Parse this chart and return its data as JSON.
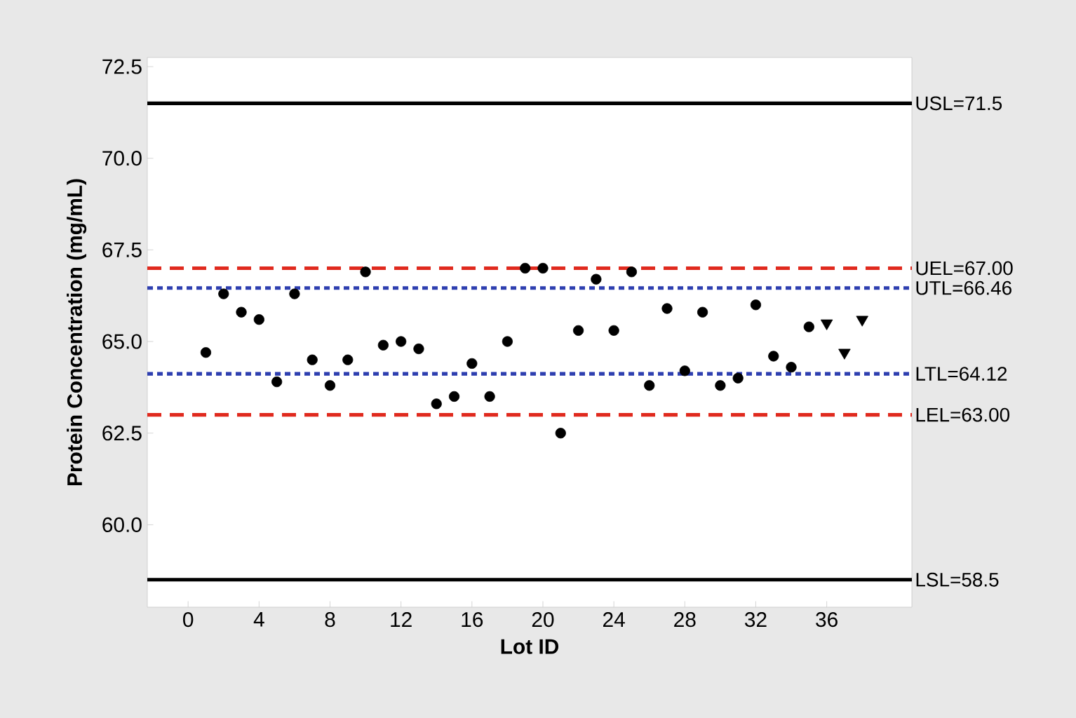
{
  "chart_data": {
    "type": "scatter",
    "xlabel": "Lot ID",
    "ylabel": "Protein Concentration (mg/mL)",
    "xlim": [
      -2.3,
      40.8
    ],
    "ylim": [
      57.75,
      72.75
    ],
    "xticks": [
      0,
      4,
      8,
      12,
      16,
      20,
      24,
      28,
      32,
      36
    ],
    "yticks": [
      {
        "value": 60,
        "label": "60.0"
      },
      {
        "value": 62.5,
        "label": "62.5"
      },
      {
        "value": 65,
        "label": "65.0"
      },
      {
        "value": 67.5,
        "label": "67.5"
      },
      {
        "value": 70,
        "label": "70.0"
      },
      {
        "value": 72.5,
        "label": "72.5"
      }
    ],
    "grid": false,
    "series": [
      {
        "color": "#000000",
        "marker": "circle",
        "x": [
          1,
          2,
          3,
          4,
          5,
          6,
          7,
          8,
          9,
          10,
          11,
          12,
          13,
          14,
          15,
          16,
          17,
          18,
          19,
          20,
          21,
          22,
          23,
          24,
          25,
          26,
          27,
          28,
          29,
          30,
          31,
          32,
          33,
          34,
          35
        ],
        "values": [
          64.7,
          66.3,
          65.8,
          65.6,
          63.9,
          66.3,
          64.5,
          63.8,
          64.5,
          66.9,
          64.9,
          65.0,
          64.8,
          63.3,
          63.5,
          64.4,
          63.5,
          65.0,
          67.0,
          67.0,
          62.5,
          65.3,
          66.7,
          65.3,
          66.9,
          63.8,
          65.9,
          64.2,
          65.8,
          63.8,
          64.0,
          66.0,
          64.6,
          64.3,
          65.4
        ]
      },
      {
        "color": "#000000",
        "marker": "triangle",
        "x": [
          36,
          37,
          38
        ],
        "values": [
          65.5,
          64.7,
          65.6
        ]
      }
    ],
    "ref_lines": [
      {
        "axis": "y",
        "value": 71.5,
        "label": "USL=71.5",
        "color": "#000000",
        "line_style": "solid"
      },
      {
        "axis": "y",
        "value": 67.0,
        "label": "UEL=67.00",
        "color": "#e02a1e",
        "line_style": "dashed"
      },
      {
        "axis": "y",
        "value": 66.46,
        "label": "UTL=66.46",
        "color": "#2e3fb0",
        "line_style": "dotted"
      },
      {
        "axis": "y",
        "value": 64.12,
        "label": "LTL=64.12",
        "color": "#2e3fb0",
        "line_style": "dotted"
      },
      {
        "axis": "y",
        "value": 63.0,
        "label": "LEL=63.00",
        "color": "#e02a1e",
        "line_style": "dashed"
      },
      {
        "axis": "y",
        "value": 58.5,
        "label": "LSL=58.5",
        "color": "#000000",
        "line_style": "solid"
      }
    ]
  }
}
